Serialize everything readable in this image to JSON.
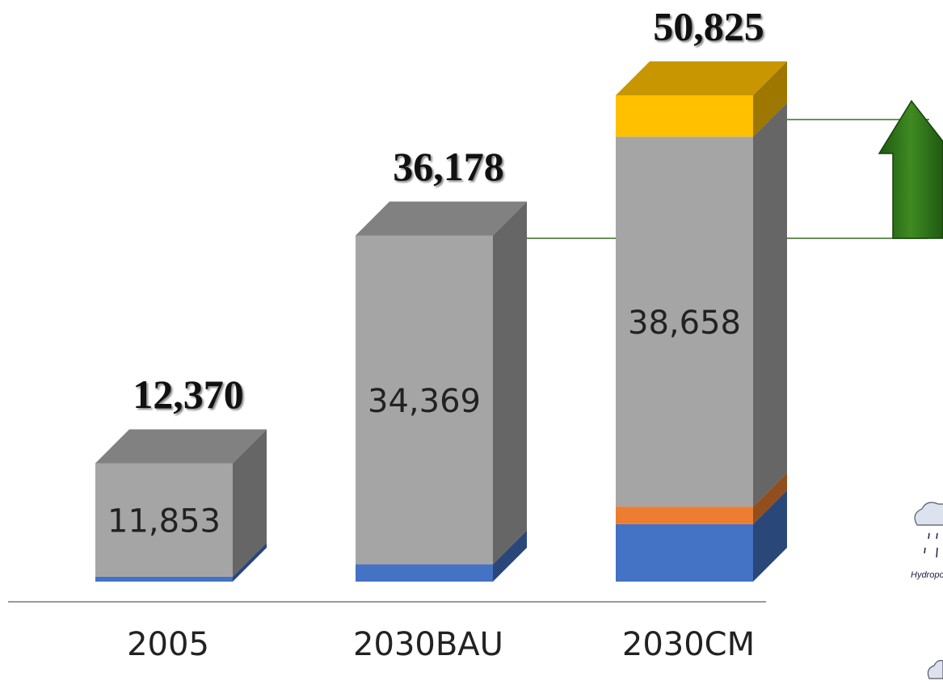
{
  "chart_data": {
    "type": "bar3d_stacked",
    "categories": [
      "2005",
      "2030BAU",
      "2030CM"
    ],
    "series": [
      {
        "color": "#4472c4",
        "values": [
          517,
          1809,
          6003
        ]
      },
      {
        "color": "#ed7d31",
        "values": [
          0,
          0,
          1841
        ]
      },
      {
        "color": "#a5a5a5",
        "values": [
          11853,
          34369,
          38658
        ],
        "value_labels": [
          "11,853",
          "34,369",
          "38,658"
        ]
      },
      {
        "color": "#ffc000",
        "values": [
          0,
          0,
          4323
        ]
      }
    ],
    "totals": [
      12370,
      36178,
      50825
    ],
    "total_labels": [
      "12,370",
      "36,178",
      "50,825"
    ],
    "side_text": "Hydropowe"
  }
}
